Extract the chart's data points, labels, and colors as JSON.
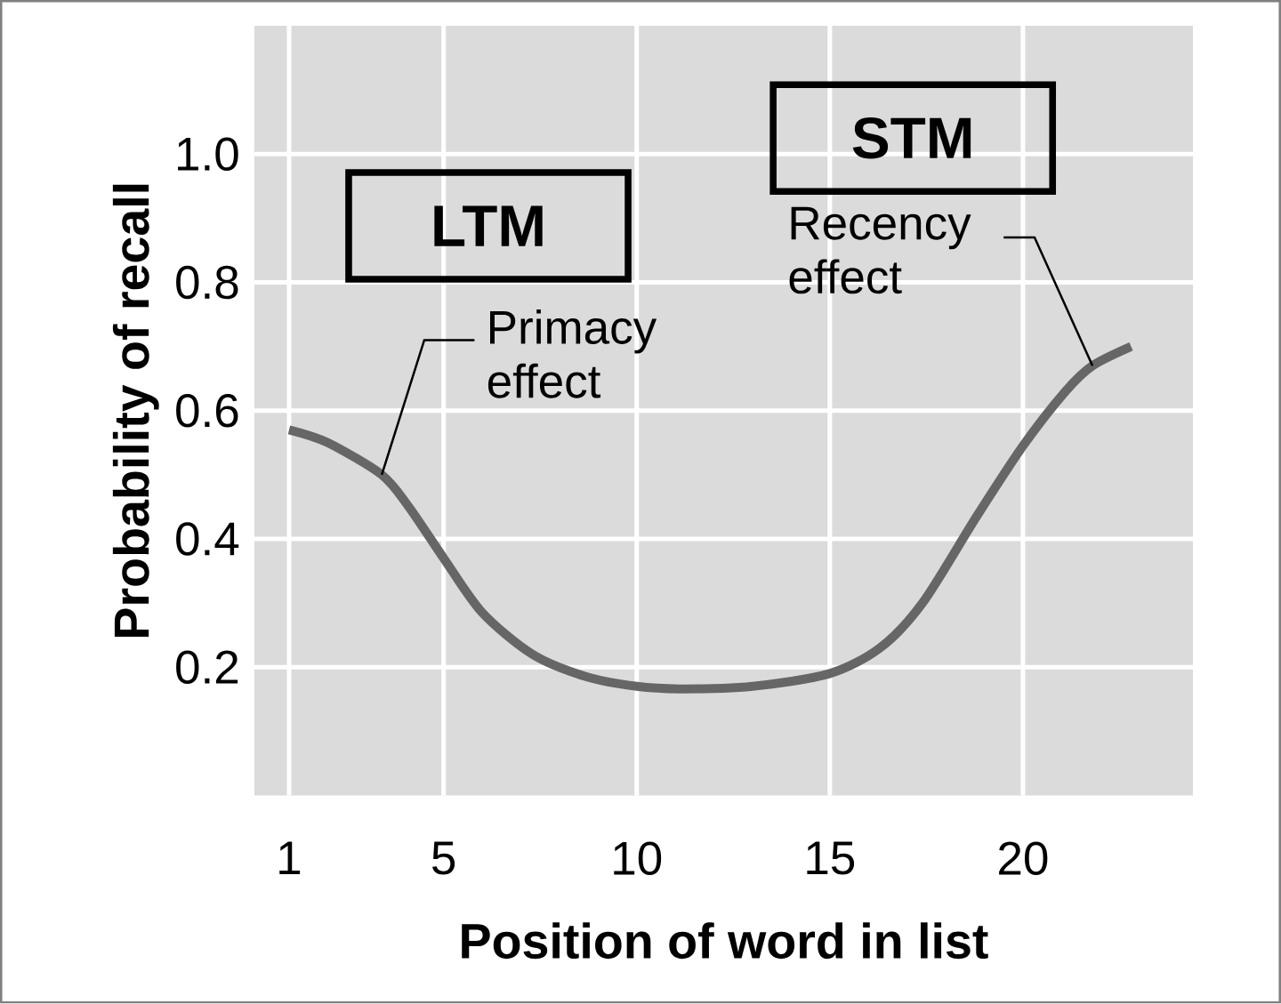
{
  "chart_data": {
    "type": "line",
    "xlabel": "Position of word in list",
    "ylabel": "Probability of recall",
    "x": [
      1,
      2,
      3.4,
      4.1,
      5,
      6,
      7.3,
      8.7,
      10,
      11.2,
      13,
      15,
      16.3,
      17.4,
      18.8,
      20,
      21.1,
      21.8,
      22.8
    ],
    "series": [
      {
        "color": "#666666",
        "values": [
          0.57,
          0.55,
          0.5,
          0.45,
          0.37,
          0.285,
          0.22,
          0.185,
          0.17,
          0.166,
          0.17,
          0.19,
          0.23,
          0.3,
          0.435,
          0.545,
          0.63,
          0.67,
          0.7
        ]
      }
    ],
    "xlim": [
      0.1,
      24.4
    ],
    "ylim": [
      0,
      1.2
    ],
    "xticks": [
      1,
      5,
      10,
      15,
      20
    ],
    "yticks": [
      0.2,
      0.4,
      0.6,
      0.8,
      {
        "value": 1.0,
        "label": "1.0"
      }
    ],
    "grid": true,
    "marker": "none",
    "line_style": "solid",
    "annotations": [
      "LTM",
      "STM",
      {
        "text": "Primacy effect",
        "x": 3.4,
        "y": 0.5
      },
      {
        "text": "Recency effect",
        "x": 21.8,
        "y": 0.67
      }
    ]
  }
}
